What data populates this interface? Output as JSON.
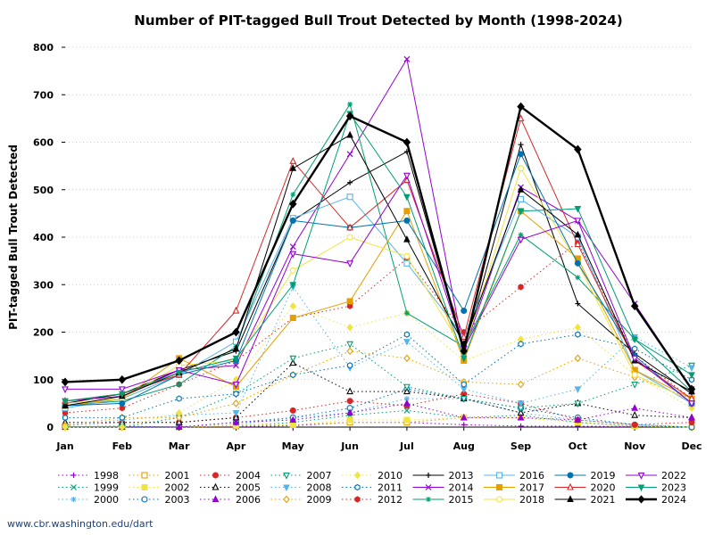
{
  "chart_data": {
    "type": "line",
    "title": "Number of PIT-tagged Bull Trout Detected by Month (1998-2024)",
    "xlabel": "",
    "ylabel": "PIT-tagged Bull Trout Detected",
    "categories": [
      "Jan",
      "Feb",
      "Mar",
      "Apr",
      "May",
      "Jun",
      "Jul",
      "Aug",
      "Sep",
      "Oct",
      "Nov",
      "Dec"
    ],
    "ylim": [
      0,
      800
    ],
    "yticks": [
      0,
      100,
      200,
      300,
      400,
      500,
      600,
      700,
      800
    ],
    "grid": true,
    "legend_position": "bottom",
    "series": [
      {
        "name": "1998",
        "color": "#9400d3",
        "dash": "dot",
        "marker": "plus",
        "values": [
          0,
          0,
          0,
          1,
          3,
          10,
          10,
          5,
          2,
          2,
          1,
          0
        ]
      },
      {
        "name": "1999",
        "color": "#009e73",
        "dash": "dot",
        "marker": "x",
        "values": [
          0,
          0,
          0,
          2,
          10,
          25,
          35,
          20,
          25,
          10,
          2,
          0
        ]
      },
      {
        "name": "2000",
        "color": "#56b4e9",
        "dash": "dot",
        "marker": "star",
        "values": [
          0,
          0,
          0,
          5,
          20,
          30,
          60,
          60,
          30,
          15,
          5,
          0
        ]
      },
      {
        "name": "2001",
        "color": "#e69f00",
        "dash": "dot",
        "marker": "square-open",
        "values": [
          0,
          0,
          0,
          2,
          5,
          10,
          10,
          20,
          20,
          10,
          2,
          0
        ]
      },
      {
        "name": "2002",
        "color": "#f0e442",
        "dash": "dot",
        "marker": "square",
        "values": [
          0,
          0,
          0,
          5,
          5,
          15,
          15,
          20,
          20,
          10,
          2,
          0
        ]
      },
      {
        "name": "2003",
        "color": "#0072b2",
        "dash": "dot",
        "marker": "circle-open",
        "values": [
          1,
          2,
          0,
          10,
          20,
          40,
          80,
          60,
          40,
          20,
          5,
          0
        ]
      },
      {
        "name": "2004",
        "color": "#d62728",
        "dash": "dot",
        "marker": "circle",
        "values": [
          5,
          10,
          10,
          20,
          35,
          55,
          45,
          70,
          50,
          15,
          5,
          10
        ]
      },
      {
        "name": "2005",
        "color": "#000000",
        "dash": "dot",
        "marker": "triangle-open",
        "values": [
          10,
          10,
          10,
          20,
          135,
          75,
          75,
          60,
          30,
          50,
          25,
          20
        ]
      },
      {
        "name": "2006",
        "color": "#9400d3",
        "dash": "dot",
        "marker": "triangle",
        "values": [
          0,
          0,
          0,
          10,
          15,
          30,
          50,
          20,
          20,
          15,
          40,
          20
        ]
      },
      {
        "name": "2007",
        "color": "#009e73",
        "dash": "dot",
        "marker": "triangle-down-open",
        "values": [
          0,
          0,
          20,
          70,
          145,
          175,
          85,
          60,
          40,
          50,
          90,
          130
        ]
      },
      {
        "name": "2008",
        "color": "#56b4e9",
        "dash": "dot",
        "marker": "triangle-down",
        "values": [
          2,
          15,
          25,
          30,
          295,
          125,
          180,
          80,
          50,
          80,
          190,
          125
        ]
      },
      {
        "name": "2009",
        "color": "#e69f00",
        "dash": "dot",
        "marker": "diamond-open",
        "values": [
          3,
          20,
          20,
          50,
          110,
          160,
          145,
          95,
          90,
          145,
          105,
          60
        ]
      },
      {
        "name": "2010",
        "color": "#f0e442",
        "dash": "dot",
        "marker": "diamond",
        "values": [
          0,
          0,
          30,
          100,
          255,
          210,
          240,
          140,
          185,
          210,
          110,
          40
        ]
      },
      {
        "name": "2011",
        "color": "#0072b2",
        "dash": "dot",
        "marker": "hexagon-open",
        "values": [
          20,
          20,
          60,
          70,
          110,
          130,
          195,
          90,
          175,
          195,
          165,
          100
        ]
      },
      {
        "name": "2012",
        "color": "#d62728",
        "dash": "dot",
        "marker": "hexagon",
        "values": [
          30,
          40,
          90,
          140,
          230,
          255,
          355,
          200,
          295,
          390,
          150,
          60
        ]
      },
      {
        "name": "2013",
        "color": "#000000",
        "dash": "solid",
        "marker": "plus",
        "values": [
          50,
          70,
          120,
          160,
          435,
          515,
          580,
          160,
          595,
          260,
          155,
          70
        ]
      },
      {
        "name": "2014",
        "color": "#9400d3",
        "dash": "solid",
        "marker": "x",
        "values": [
          55,
          65,
          120,
          130,
          380,
          575,
          775,
          160,
          505,
          435,
          260,
          80
        ]
      },
      {
        "name": "2015",
        "color": "#009e73",
        "dash": "solid",
        "marker": "star",
        "values": [
          45,
          55,
          90,
          170,
          490,
          680,
          240,
          170,
          405,
          315,
          185,
          75
        ]
      },
      {
        "name": "2016",
        "color": "#56b4e9",
        "dash": "solid",
        "marker": "square-open",
        "values": [
          40,
          60,
          110,
          180,
          440,
          485,
          345,
          190,
          480,
          400,
          120,
          50
        ]
      },
      {
        "name": "2017",
        "color": "#e69f00",
        "dash": "solid",
        "marker": "square",
        "values": [
          45,
          60,
          145,
          85,
          230,
          265,
          455,
          140,
          455,
          355,
          120,
          60
        ]
      },
      {
        "name": "2018",
        "color": "#f0e442",
        "dash": "solid",
        "marker": "circle-open",
        "values": [
          50,
          60,
          130,
          140,
          330,
          400,
          360,
          160,
          545,
          345,
          110,
          55
        ]
      },
      {
        "name": "2019",
        "color": "#0072b2",
        "dash": "solid",
        "marker": "circle",
        "values": [
          45,
          50,
          110,
          140,
          435,
          420,
          435,
          245,
          575,
          345,
          150,
          50
        ]
      },
      {
        "name": "2020",
        "color": "#d62728",
        "dash": "solid",
        "marker": "triangle-open",
        "values": [
          55,
          70,
          110,
          245,
          560,
          420,
          520,
          190,
          650,
          385,
          140,
          60
        ]
      },
      {
        "name": "2021",
        "color": "#000000",
        "dash": "solid",
        "marker": "triangle",
        "values": [
          45,
          65,
          115,
          165,
          545,
          615,
          395,
          175,
          500,
          405,
          140,
          75
        ]
      },
      {
        "name": "2022",
        "color": "#9400d3",
        "dash": "solid",
        "marker": "triangle-down-open",
        "values": [
          80,
          80,
          120,
          90,
          365,
          345,
          530,
          165,
          395,
          435,
          145,
          50
        ]
      },
      {
        "name": "2023",
        "color": "#009e73",
        "dash": "solid",
        "marker": "triangle-down",
        "values": [
          55,
          70,
          115,
          145,
          300,
          660,
          485,
          145,
          455,
          460,
          185,
          110
        ]
      },
      {
        "name": "2024",
        "color": "#000000",
        "dash": "solid",
        "marker": "diamond",
        "bold": true,
        "values": [
          95,
          100,
          140,
          200,
          470,
          655,
          600,
          160,
          675,
          585,
          255,
          80
        ]
      }
    ]
  },
  "footer": {
    "source": "www.cbr.washington.edu/dart"
  }
}
